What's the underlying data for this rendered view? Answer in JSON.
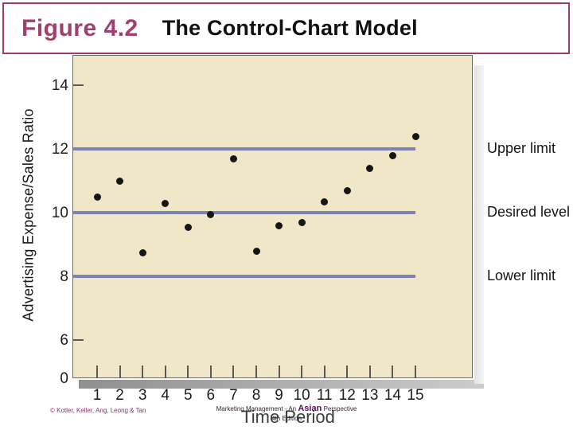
{
  "header": {
    "figure_label": "Figure 4.2",
    "title": "The Control-Chart Model"
  },
  "chart_data": {
    "type": "scatter",
    "xlabel": "Time Period",
    "ylabel": "Advertising Expense/Sales Ratio",
    "x": [
      1,
      2,
      3,
      4,
      5,
      6,
      7,
      8,
      9,
      10,
      11,
      12,
      13,
      14,
      15
    ],
    "values": [
      10.5,
      11.0,
      8.75,
      10.3,
      9.55,
      9.95,
      11.7,
      8.8,
      9.6,
      9.7,
      10.35,
      10.7,
      11.4,
      11.8,
      12.4
    ],
    "x_tick_labels": [
      "1",
      "2",
      "3",
      "4",
      "5",
      "6",
      "7",
      "8",
      "9",
      "10",
      "11",
      "12",
      "13",
      "14",
      "15"
    ],
    "y_tick_values": [
      14,
      12,
      10,
      8,
      6,
      0
    ],
    "y_tick_labels": [
      "14",
      "12",
      "10",
      "8",
      "6",
      "0"
    ],
    "xlim": [
      0,
      15.5
    ],
    "ylim": [
      0,
      15
    ],
    "axis_note": "y-axis compressed between 0 and 6",
    "grid": false,
    "legend_position": "right-margin",
    "reference_lines": [
      {
        "value": 12,
        "label": "Upper limit"
      },
      {
        "value": 10,
        "label": "Desired level"
      },
      {
        "value": 8,
        "label": "Lower limit"
      }
    ]
  },
  "colors": {
    "accent_raspberry": "#9e3a68",
    "figure_label_text": "#a33f6f",
    "plot_background": "#f0e7c9",
    "limit_line": "#7e83b2",
    "data_point": "#161616",
    "footer_copyright": "#8c2f6e",
    "asian_highlight": "#5c0a5c"
  },
  "footer": {
    "copyright": "© Kotler, Keller, Ang, Leong & Tan",
    "book_title_prefix": "Marketing Management - An",
    "book_title_highlight": "Asian",
    "book_title_suffix": "Perspective",
    "edition": "4th Edition"
  }
}
